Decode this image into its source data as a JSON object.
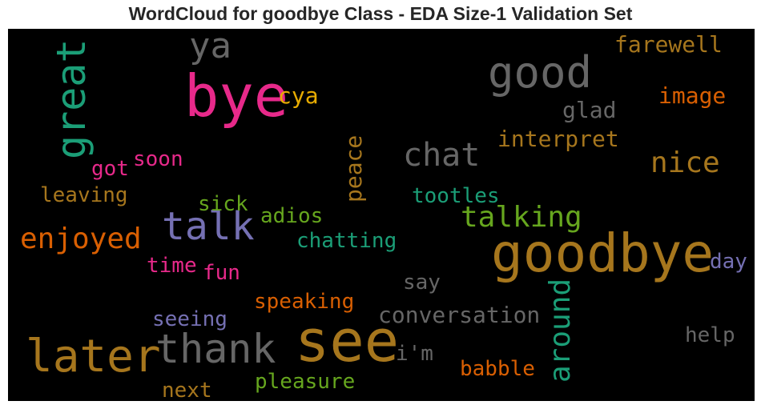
{
  "chart_data": {
    "type": "wordcloud",
    "title": "WordCloud for goodbye Class - EDA Size-1 Validation Set",
    "background": "#000000",
    "words": [
      {
        "text": "bye",
        "color": "#e7298a",
        "orientation": "horizontal"
      },
      {
        "text": "see",
        "color": "#a6761d",
        "orientation": "horizontal"
      },
      {
        "text": "goodbye",
        "color": "#a6761d",
        "orientation": "horizontal"
      },
      {
        "text": "good",
        "color": "#666666",
        "orientation": "horizontal"
      },
      {
        "text": "later",
        "color": "#a6761d",
        "orientation": "horizontal"
      },
      {
        "text": "thank",
        "color": "#666666",
        "orientation": "horizontal"
      },
      {
        "text": "great",
        "color": "#1b9e77",
        "orientation": "vertical"
      },
      {
        "text": "talk",
        "color": "#7570b3",
        "orientation": "horizontal"
      },
      {
        "text": "ya",
        "color": "#666666",
        "orientation": "horizontal"
      },
      {
        "text": "around",
        "color": "#1b9e77",
        "orientation": "vertical"
      },
      {
        "text": "chat",
        "color": "#666666",
        "orientation": "horizontal"
      },
      {
        "text": "enjoyed",
        "color": "#d95f02",
        "orientation": "horizontal"
      },
      {
        "text": "talking",
        "color": "#66a61e",
        "orientation": "horizontal"
      },
      {
        "text": "nice",
        "color": "#a6761d",
        "orientation": "horizontal"
      },
      {
        "text": "conversation",
        "color": "#666666",
        "orientation": "horizontal"
      },
      {
        "text": "farewell",
        "color": "#a6761d",
        "orientation": "horizontal"
      },
      {
        "text": "image",
        "color": "#d95f02",
        "orientation": "horizontal"
      },
      {
        "text": "glad",
        "color": "#666666",
        "orientation": "horizontal"
      },
      {
        "text": "interpret",
        "color": "#a6761d",
        "orientation": "horizontal"
      },
      {
        "text": "cya",
        "color": "#e6ab02",
        "orientation": "horizontal"
      },
      {
        "text": "peace",
        "color": "#a6761d",
        "orientation": "vertical"
      },
      {
        "text": "got",
        "color": "#e7298a",
        "orientation": "horizontal"
      },
      {
        "text": "soon",
        "color": "#e7298a",
        "orientation": "horizontal"
      },
      {
        "text": "leaving",
        "color": "#a6761d",
        "orientation": "horizontal"
      },
      {
        "text": "sick",
        "color": "#66a61e",
        "orientation": "horizontal"
      },
      {
        "text": "adios",
        "color": "#66a61e",
        "orientation": "horizontal"
      },
      {
        "text": "tootles",
        "color": "#1b9e77",
        "orientation": "horizontal"
      },
      {
        "text": "chatting",
        "color": "#1b9e77",
        "orientation": "horizontal"
      },
      {
        "text": "time",
        "color": "#e7298a",
        "orientation": "horizontal"
      },
      {
        "text": "fun",
        "color": "#e7298a",
        "orientation": "horizontal"
      },
      {
        "text": "day",
        "color": "#7570b3",
        "orientation": "horizontal"
      },
      {
        "text": "say",
        "color": "#666666",
        "orientation": "horizontal"
      },
      {
        "text": "speaking",
        "color": "#d95f02",
        "orientation": "horizontal"
      },
      {
        "text": "seeing",
        "color": "#7570b3",
        "orientation": "horizontal"
      },
      {
        "text": "help",
        "color": "#666666",
        "orientation": "horizontal"
      },
      {
        "text": "i'm",
        "color": "#666666",
        "orientation": "horizontal"
      },
      {
        "text": "babble",
        "color": "#d95f02",
        "orientation": "horizontal"
      },
      {
        "text": "pleasure",
        "color": "#66a61e",
        "orientation": "horizontal"
      },
      {
        "text": "next",
        "color": "#a6761d",
        "orientation": "horizontal"
      }
    ]
  }
}
